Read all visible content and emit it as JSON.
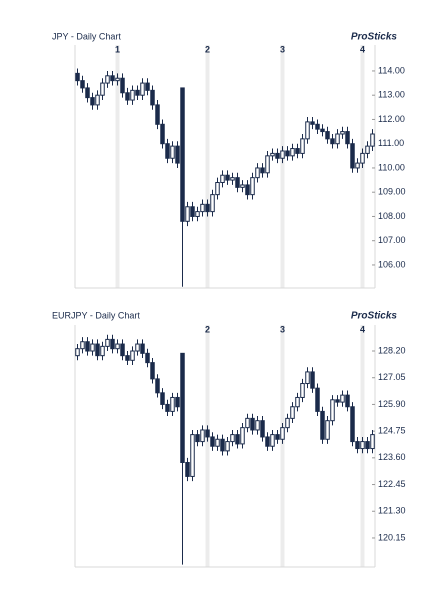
{
  "chart_data": [
    {
      "type": "candlestick",
      "title": "JPY - Daily Chart",
      "brand": "ProSticks",
      "color": "#1b2b4b",
      "grid": true,
      "categories": [
        null,
        null,
        null,
        null,
        null,
        null,
        null,
        null,
        "1",
        null,
        null,
        null,
        null,
        null,
        null,
        null,
        null,
        null,
        null,
        null,
        null,
        null,
        null,
        null,
        null,
        null,
        "2",
        null,
        null,
        null,
        null,
        null,
        null,
        null,
        null,
        null,
        null,
        null,
        null,
        null,
        null,
        "3",
        null,
        null,
        null,
        null,
        null,
        null,
        null,
        null,
        null,
        null,
        null,
        null,
        null,
        null,
        null,
        "4",
        null,
        null
      ],
      "open": [
        113.9,
        113.6,
        113.3,
        112.9,
        112.6,
        113.0,
        113.5,
        113.8,
        113.6,
        113.7,
        113.1,
        112.8,
        113.2,
        113.0,
        113.5,
        113.2,
        112.6,
        111.8,
        111.0,
        110.4,
        110.9,
        113.3,
        107.8,
        108.4,
        108.0,
        108.2,
        108.5,
        108.2,
        108.9,
        109.4,
        109.7,
        109.5,
        109.6,
        109.2,
        109.3,
        108.9,
        109.6,
        110.0,
        109.8,
        110.5,
        110.6,
        110.4,
        110.7,
        110.5,
        110.8,
        110.6,
        111.2,
        111.9,
        111.8,
        111.6,
        111.5,
        111.2,
        111.0,
        111.4,
        111.5,
        111.0,
        110.0,
        110.2,
        110.6,
        110.9
      ],
      "high": [
        114.1,
        113.8,
        113.5,
        113.1,
        113.2,
        113.7,
        114.0,
        114.0,
        113.9,
        113.9,
        113.3,
        113.4,
        113.4,
        113.7,
        113.7,
        113.4,
        112.8,
        112.0,
        111.2,
        111.1,
        111.1,
        113.3,
        108.6,
        108.6,
        108.4,
        108.7,
        108.7,
        109.1,
        109.6,
        109.9,
        109.9,
        109.8,
        109.8,
        109.5,
        109.5,
        109.8,
        110.2,
        110.2,
        110.7,
        110.8,
        110.8,
        110.9,
        110.9,
        111.0,
        111.0,
        111.4,
        112.1,
        112.1,
        112.0,
        111.8,
        111.7,
        111.4,
        111.6,
        111.7,
        111.7,
        111.2,
        110.4,
        110.8,
        111.1,
        111.6
      ],
      "low": [
        113.4,
        113.1,
        112.7,
        112.4,
        112.4,
        112.8,
        113.3,
        113.4,
        113.4,
        112.9,
        112.6,
        112.6,
        112.8,
        112.8,
        113.0,
        112.4,
        111.6,
        110.8,
        110.2,
        110.2,
        110.0,
        105.1,
        107.6,
        107.8,
        107.8,
        108.0,
        108.0,
        108.0,
        108.7,
        109.2,
        109.3,
        109.3,
        109.0,
        109.0,
        108.7,
        108.7,
        109.4,
        109.6,
        109.6,
        110.3,
        110.2,
        110.2,
        110.3,
        110.3,
        110.4,
        110.4,
        111.0,
        111.6,
        111.4,
        111.3,
        111.0,
        110.8,
        110.8,
        111.2,
        110.8,
        109.8,
        109.8,
        110.0,
        110.4,
        110.7
      ],
      "close": [
        113.6,
        113.3,
        112.9,
        112.6,
        113.0,
        113.5,
        113.8,
        113.6,
        113.7,
        113.1,
        112.8,
        113.2,
        113.0,
        113.5,
        113.2,
        112.6,
        111.8,
        111.0,
        110.4,
        110.9,
        110.2,
        107.8,
        108.4,
        108.0,
        108.2,
        108.5,
        108.2,
        108.9,
        109.4,
        109.7,
        109.5,
        109.6,
        109.2,
        109.3,
        108.9,
        109.6,
        110.0,
        109.8,
        110.5,
        110.6,
        110.4,
        110.7,
        110.5,
        110.8,
        110.6,
        111.2,
        111.9,
        111.8,
        111.6,
        111.5,
        111.2,
        111.0,
        111.4,
        111.5,
        111.0,
        110.0,
        110.2,
        110.6,
        110.9,
        111.4
      ],
      "ylim": [
        105.05,
        115.07
      ],
      "yticks": [
        {
          "value": 114,
          "label": "114.00"
        },
        {
          "value": 113,
          "label": "113.00"
        },
        {
          "value": 112,
          "label": "112.00"
        },
        {
          "value": 111,
          "label": "111.00"
        },
        {
          "value": 110,
          "label": "110.00"
        },
        {
          "value": 109,
          "label": "109.00"
        },
        {
          "value": 108,
          "label": "108.00"
        },
        {
          "value": 107,
          "label": "107.00"
        },
        {
          "value": 106,
          "label": "106.00"
        }
      ]
    },
    {
      "type": "candlestick",
      "title": "EURJPY - Daily Chart",
      "brand": "ProSticks",
      "color": "#1b2b4b",
      "grid": true,
      "categories": [
        null,
        null,
        null,
        null,
        null,
        null,
        null,
        null,
        null,
        null,
        null,
        null,
        null,
        null,
        null,
        null,
        null,
        null,
        null,
        null,
        null,
        null,
        null,
        null,
        null,
        null,
        "2",
        null,
        null,
        null,
        null,
        null,
        null,
        null,
        null,
        null,
        null,
        null,
        null,
        null,
        null,
        "3",
        null,
        null,
        null,
        null,
        null,
        null,
        null,
        null,
        null,
        null,
        null,
        null,
        null,
        null,
        null,
        "4",
        null,
        null
      ],
      "open": [
        128.0,
        128.3,
        128.6,
        128.2,
        128.5,
        128.0,
        128.4,
        128.7,
        128.3,
        128.5,
        128.0,
        127.8,
        128.2,
        128.5,
        128.1,
        127.7,
        127.0,
        126.4,
        125.9,
        125.6,
        126.2,
        128.1,
        123.4,
        122.8,
        124.6,
        124.3,
        124.8,
        124.5,
        124.1,
        124.4,
        123.9,
        124.3,
        124.6,
        124.2,
        124.9,
        125.3,
        124.8,
        125.2,
        124.5,
        124.1,
        124.6,
        124.4,
        124.9,
        125.3,
        125.8,
        126.2,
        126.8,
        127.3,
        126.6,
        125.6,
        124.4,
        125.2,
        126.1,
        126.0,
        126.3,
        125.8,
        124.3,
        124.0,
        124.3,
        124.0
      ],
      "high": [
        128.5,
        128.8,
        128.8,
        128.7,
        128.7,
        128.6,
        128.9,
        128.9,
        128.7,
        128.7,
        128.2,
        128.4,
        128.7,
        128.7,
        128.3,
        127.9,
        127.2,
        126.6,
        126.1,
        126.4,
        126.4,
        128.1,
        123.6,
        124.8,
        124.8,
        125.0,
        125.0,
        124.7,
        124.6,
        124.6,
        124.5,
        124.8,
        124.8,
        125.1,
        125.5,
        125.5,
        125.4,
        125.4,
        124.7,
        124.8,
        124.8,
        125.1,
        125.5,
        126.0,
        126.4,
        127.0,
        127.5,
        127.5,
        126.8,
        125.8,
        125.4,
        126.3,
        126.3,
        126.5,
        126.5,
        126.0,
        124.5,
        124.5,
        124.5,
        124.8
      ],
      "low": [
        127.8,
        128.1,
        128.0,
        128.0,
        127.8,
        127.8,
        128.2,
        128.1,
        128.1,
        127.8,
        127.6,
        127.6,
        128.0,
        127.9,
        127.5,
        126.8,
        126.2,
        125.7,
        125.4,
        125.4,
        125.6,
        119.0,
        122.6,
        122.6,
        124.1,
        124.1,
        124.3,
        123.9,
        123.9,
        123.7,
        123.7,
        124.1,
        124.0,
        124.0,
        124.7,
        124.6,
        124.6,
        124.3,
        123.9,
        123.9,
        124.2,
        124.2,
        124.7,
        125.1,
        125.6,
        126.0,
        126.6,
        126.4,
        125.4,
        124.2,
        124.2,
        125.0,
        125.8,
        125.8,
        125.6,
        124.1,
        123.8,
        123.8,
        123.8,
        123.8
      ],
      "close": [
        128.3,
        128.6,
        128.2,
        128.5,
        128.0,
        128.4,
        128.7,
        128.3,
        128.5,
        128.0,
        127.8,
        128.2,
        128.5,
        128.1,
        127.7,
        127.0,
        126.4,
        125.9,
        125.6,
        126.2,
        125.8,
        123.4,
        122.8,
        124.6,
        124.3,
        124.8,
        124.5,
        124.1,
        124.4,
        123.9,
        124.3,
        124.6,
        124.2,
        124.9,
        125.3,
        124.8,
        125.2,
        124.5,
        124.1,
        124.6,
        124.4,
        124.9,
        125.3,
        125.8,
        126.2,
        126.8,
        127.3,
        126.6,
        125.6,
        124.4,
        125.2,
        126.1,
        126.0,
        126.3,
        125.8,
        124.3,
        124.0,
        124.3,
        124.0,
        124.6
      ],
      "ylim": [
        118.9,
        129.32
      ],
      "yticks": [
        {
          "value": 128.2,
          "label": "128.20"
        },
        127.05,
        {
          "value": 125.9,
          "label": "125.90"
        },
        124.75,
        {
          "value": 123.6,
          "label": "123.60"
        },
        122.45,
        {
          "value": 121.3,
          "label": "121.30"
        },
        120.15
      ]
    }
  ]
}
